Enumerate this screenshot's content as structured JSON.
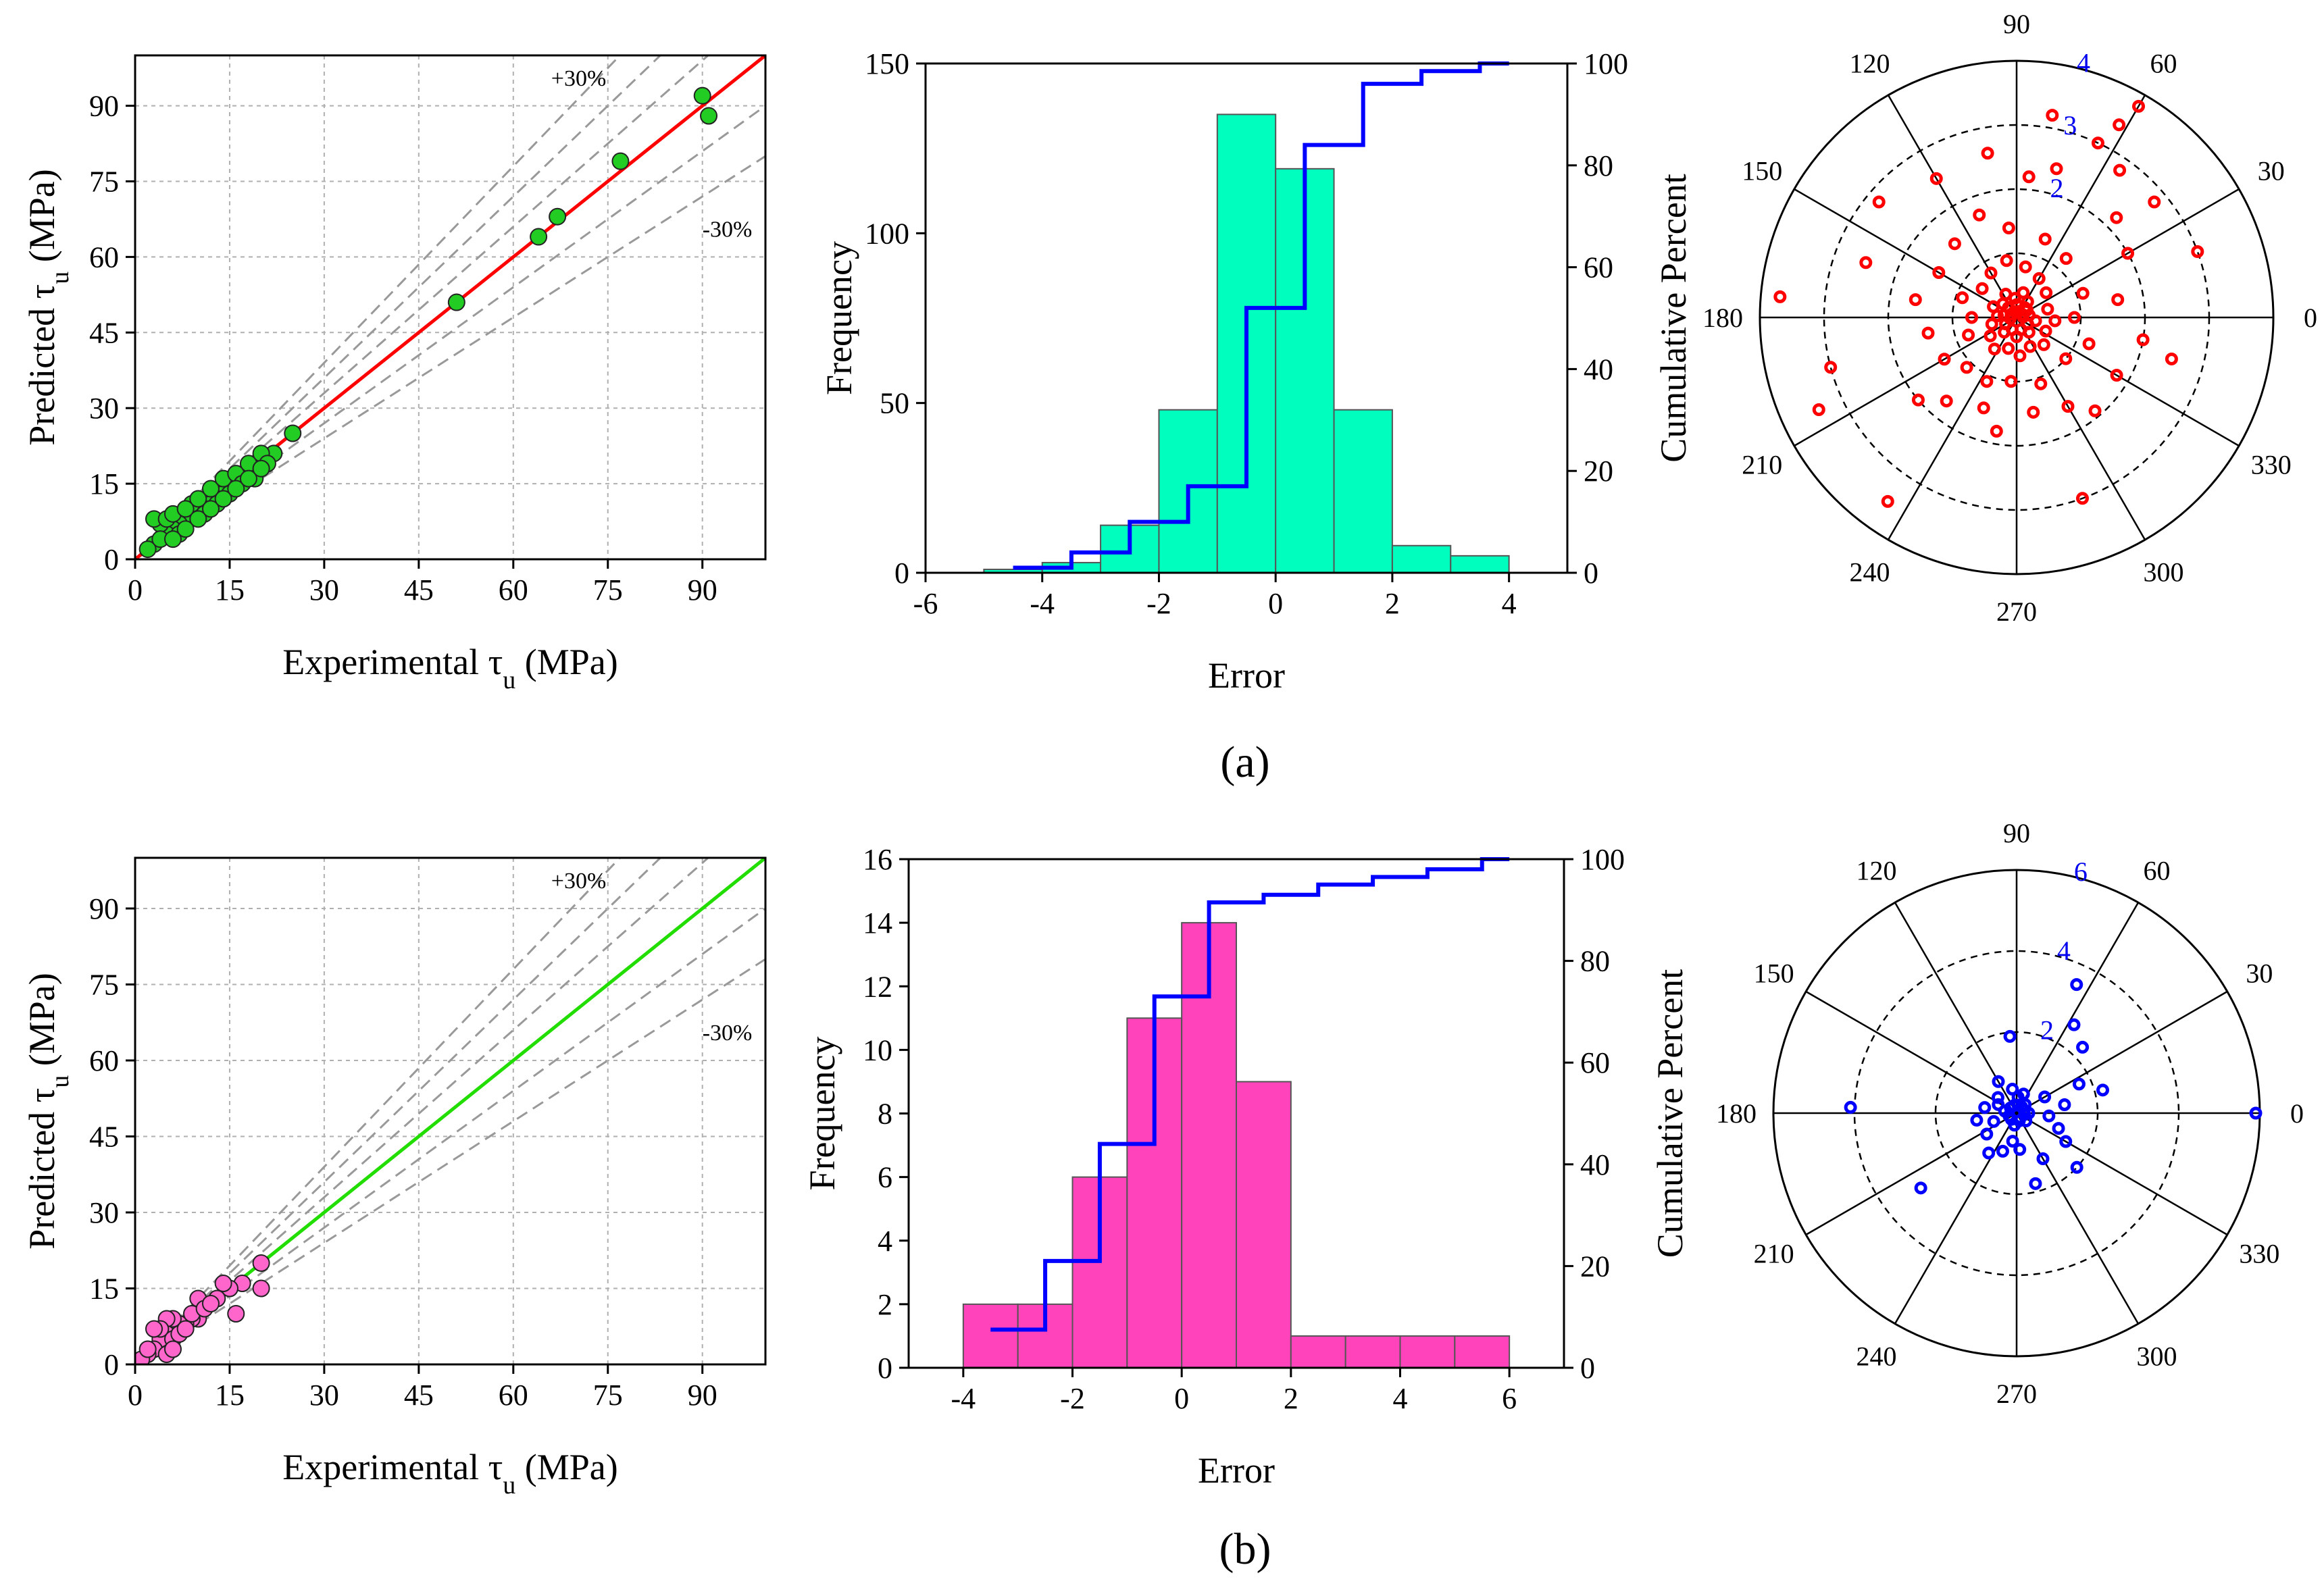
{
  "figure": {
    "panel_labels": [
      "(a)",
      "(b)"
    ]
  },
  "chart_data": [
    {
      "id": "a-scatter",
      "type": "scatter",
      "xlabel": "Experimental τu (MPa)",
      "ylabel": "Predicted τu (MPa)",
      "xlim": [
        0,
        100
      ],
      "ylim": [
        0,
        100
      ],
      "xticks": [
        0,
        15,
        30,
        45,
        60,
        75,
        90
      ],
      "yticks": [
        0,
        15,
        30,
        45,
        60,
        75,
        90
      ],
      "grid": true,
      "fit_line_color": "#ff0000",
      "point_color": "#22cc22",
      "annotations": [
        "+30%",
        "-30%"
      ],
      "reference_slopes": [
        1.3,
        1.2,
        1.1,
        0.9,
        0.8
      ],
      "points": [
        [
          90,
          92
        ],
        [
          91,
          88
        ],
        [
          77,
          79
        ],
        [
          67,
          68
        ],
        [
          64,
          64
        ],
        [
          51,
          51
        ],
        [
          25,
          25
        ],
        [
          22,
          21
        ],
        [
          20,
          20
        ],
        [
          19,
          18
        ],
        [
          18,
          17
        ],
        [
          17,
          16
        ],
        [
          16,
          15
        ],
        [
          15,
          14
        ],
        [
          14,
          13
        ],
        [
          13,
          12
        ],
        [
          12,
          11
        ],
        [
          11,
          10
        ],
        [
          10,
          9
        ],
        [
          9,
          9
        ],
        [
          8,
          8
        ],
        [
          7,
          7
        ],
        [
          6,
          6
        ],
        [
          5,
          5
        ],
        [
          4,
          7
        ],
        [
          3,
          8
        ],
        [
          5,
          8
        ],
        [
          6,
          9
        ],
        [
          7,
          5
        ],
        [
          8,
          6
        ],
        [
          9,
          11
        ],
        [
          10,
          12
        ],
        [
          11,
          9
        ],
        [
          12,
          14
        ],
        [
          13,
          11
        ],
        [
          14,
          16
        ],
        [
          15,
          13
        ],
        [
          16,
          17
        ],
        [
          17,
          15
        ],
        [
          18,
          19
        ],
        [
          19,
          16
        ],
        [
          20,
          21
        ],
        [
          21,
          19
        ],
        [
          3,
          3
        ],
        [
          2,
          2
        ],
        [
          4,
          4
        ],
        [
          6,
          4
        ],
        [
          8,
          10
        ],
        [
          10,
          8
        ],
        [
          12,
          10
        ],
        [
          14,
          12
        ],
        [
          16,
          14
        ],
        [
          18,
          16
        ],
        [
          20,
          18
        ]
      ]
    },
    {
      "id": "a-hist",
      "type": "bar",
      "xlabel": "Error",
      "ylabel": "Frequency",
      "y2label": "Cumulative Percent",
      "xlim": [
        -6,
        5
      ],
      "ylim": [
        0,
        150
      ],
      "y2lim": [
        0,
        100
      ],
      "xticks": [
        -6,
        -4,
        -2,
        0,
        2,
        4
      ],
      "yticks": [
        0,
        50,
        100,
        150
      ],
      "y2ticks": [
        0,
        20,
        40,
        60,
        80,
        100
      ],
      "bar_color": "#00ffbf",
      "cum_color": "#0000ff",
      "bin_width": 1,
      "bins": [
        [
          -5,
          -4,
          1
        ],
        [
          -4,
          -3,
          3
        ],
        [
          -3,
          -2,
          14
        ],
        [
          -2,
          -1,
          48
        ],
        [
          -1,
          0,
          135
        ],
        [
          0,
          1,
          119
        ],
        [
          1,
          2,
          48
        ],
        [
          2,
          3,
          8
        ],
        [
          3,
          4,
          5
        ]
      ],
      "cumulative": [
        [
          -4.5,
          1
        ],
        [
          -3.5,
          4
        ],
        [
          -2.5,
          10
        ],
        [
          -1.5,
          17
        ],
        [
          -0.5,
          52
        ],
        [
          0.5,
          84
        ],
        [
          1.5,
          96
        ],
        [
          2.5,
          98.5
        ],
        [
          3.5,
          100
        ],
        [
          4,
          100
        ]
      ]
    },
    {
      "id": "a-polar",
      "type": "scatter",
      "projection": "polar",
      "angle_ticks": [
        0,
        30,
        60,
        90,
        120,
        150,
        180,
        210,
        240,
        270,
        300,
        330
      ],
      "r_ticks": [
        1,
        2,
        3,
        4
      ],
      "rmax": 4,
      "r_tick_labels_shown": [
        2,
        3,
        4
      ],
      "point_color": "#ff0000",
      "points": [
        [
          60,
          3.8
        ],
        [
          62,
          3.4
        ],
        [
          80,
          3.2
        ],
        [
          65,
          3.0
        ],
        [
          55,
          2.8
        ],
        [
          40,
          2.8
        ],
        [
          20,
          3.0
        ],
        [
          175,
          3.7
        ],
        [
          195,
          3.0
        ],
        [
          205,
          3.4
        ],
        [
          235,
          3.5
        ],
        [
          290,
          3.0
        ],
        [
          160,
          2.5
        ],
        [
          140,
          2.8
        ],
        [
          120,
          2.5
        ],
        [
          100,
          2.6
        ],
        [
          85,
          2.2
        ],
        [
          75,
          2.4
        ],
        [
          45,
          2.2
        ],
        [
          30,
          2.0
        ],
        [
          10,
          1.6
        ],
        [
          -10,
          2.0
        ],
        [
          -15,
          2.5
        ],
        [
          330,
          1.8
        ],
        [
          310,
          1.9
        ],
        [
          300,
          1.6
        ],
        [
          280,
          1.5
        ],
        [
          260,
          1.8
        ],
        [
          250,
          1.5
        ],
        [
          230,
          1.7
        ],
        [
          220,
          2.0
        ],
        [
          210,
          1.3
        ],
        [
          190,
          1.4
        ],
        [
          170,
          1.6
        ],
        [
          150,
          1.4
        ],
        [
          130,
          1.5
        ],
        [
          110,
          1.7
        ],
        [
          95,
          1.4
        ],
        [
          70,
          1.3
        ],
        [
          50,
          1.2
        ],
        [
          20,
          1.1
        ],
        [
          0,
          0.9
        ],
        [
          340,
          1.2
        ],
        [
          320,
          1.0
        ],
        [
          290,
          1.1
        ],
        [
          265,
          1.0
        ],
        [
          245,
          1.1
        ],
        [
          225,
          1.1
        ],
        [
          200,
          0.8
        ],
        [
          180,
          0.7
        ],
        [
          160,
          0.9
        ],
        [
          140,
          0.7
        ],
        [
          120,
          0.8
        ],
        [
          100,
          0.9
        ],
        [
          80,
          0.8
        ],
        [
          60,
          0.7
        ],
        [
          40,
          0.6
        ],
        [
          15,
          0.5
        ],
        [
          355,
          0.6
        ],
        [
          335,
          0.5
        ],
        [
          315,
          0.6
        ],
        [
          295,
          0.5
        ],
        [
          275,
          0.6
        ],
        [
          255,
          0.5
        ],
        [
          235,
          0.6
        ],
        [
          215,
          0.5
        ],
        [
          195,
          0.4
        ],
        [
          175,
          0.3
        ],
        [
          155,
          0.4
        ],
        [
          135,
          0.3
        ],
        [
          115,
          0.4
        ],
        [
          95,
          0.3
        ],
        [
          75,
          0.4
        ],
        [
          55,
          0.3
        ],
        [
          35,
          0.2
        ],
        [
          10,
          0.2
        ],
        [
          350,
          0.3
        ],
        [
          330,
          0.2
        ],
        [
          310,
          0.3
        ],
        [
          290,
          0.2
        ],
        [
          270,
          0.3
        ],
        [
          250,
          0.2
        ],
        [
          230,
          0.3
        ],
        [
          210,
          0.2
        ],
        [
          190,
          0.1
        ],
        [
          170,
          0.2
        ],
        [
          150,
          0.1
        ],
        [
          130,
          0.2
        ],
        [
          110,
          0.1
        ],
        [
          90,
          0.2
        ],
        [
          70,
          0.1
        ],
        [
          50,
          0.2
        ],
        [
          30,
          0.1
        ],
        [
          5,
          0.1
        ]
      ]
    },
    {
      "id": "b-scatter",
      "type": "scatter",
      "xlabel": "Experimental τu (MPa)",
      "ylabel": "Predicted τu (MPa)",
      "xlim": [
        0,
        100
      ],
      "ylim": [
        0,
        100
      ],
      "xticks": [
        0,
        15,
        30,
        45,
        60,
        75,
        90
      ],
      "yticks": [
        0,
        15,
        30,
        45,
        60,
        75,
        90
      ],
      "grid": true,
      "fit_line_color": "#22dd00",
      "point_color": "#ff66cc",
      "annotations": [
        "+30%",
        "-30%"
      ],
      "reference_slopes": [
        1.3,
        1.2,
        1.1,
        0.9,
        0.8
      ],
      "points": [
        [
          20,
          20
        ],
        [
          20,
          15
        ],
        [
          17,
          16
        ],
        [
          16,
          10
        ],
        [
          15,
          15
        ],
        [
          14,
          16
        ],
        [
          13,
          13
        ],
        [
          10,
          13
        ],
        [
          10,
          9
        ],
        [
          9,
          9
        ],
        [
          8,
          8
        ],
        [
          7,
          8
        ],
        [
          6,
          9
        ],
        [
          5,
          9
        ],
        [
          5,
          6
        ],
        [
          4,
          5
        ],
        [
          4,
          7
        ],
        [
          3,
          7
        ],
        [
          3,
          3
        ],
        [
          2,
          2
        ],
        [
          6,
          5
        ],
        [
          7,
          6
        ],
        [
          8,
          7
        ],
        [
          9,
          10
        ],
        [
          11,
          11
        ],
        [
          12,
          12
        ],
        [
          1,
          1
        ],
        [
          2,
          3
        ],
        [
          5,
          2
        ],
        [
          6,
          3
        ]
      ]
    },
    {
      "id": "b-hist",
      "type": "bar",
      "xlabel": "Error",
      "ylabel": "Frequency",
      "y2label": "Cumulative Percent",
      "xlim": [
        -5,
        7
      ],
      "ylim": [
        0,
        16
      ],
      "y2lim": [
        0,
        100
      ],
      "xticks": [
        -4,
        -2,
        0,
        2,
        4,
        6
      ],
      "yticks": [
        0,
        2,
        4,
        6,
        8,
        10,
        12,
        14,
        16
      ],
      "y2ticks": [
        0,
        20,
        40,
        60,
        80,
        100
      ],
      "bar_color": "#ff44bb",
      "cum_color": "#0000ff",
      "bin_width": 1,
      "bins": [
        [
          -4,
          -3,
          2
        ],
        [
          -3,
          -2,
          2
        ],
        [
          -2,
          -1,
          6
        ],
        [
          -1,
          0,
          11
        ],
        [
          0,
          1,
          14
        ],
        [
          1,
          2,
          9
        ],
        [
          2,
          3,
          1
        ],
        [
          3,
          4,
          1
        ],
        [
          4,
          5,
          1
        ],
        [
          5,
          6,
          1
        ]
      ],
      "cumulative": [
        [
          -3.5,
          7.5
        ],
        [
          -2.5,
          21
        ],
        [
          -1.5,
          44
        ],
        [
          -0.5,
          73
        ],
        [
          0.5,
          91.5
        ],
        [
          1.5,
          93
        ],
        [
          2.5,
          95
        ],
        [
          3.5,
          96.5
        ],
        [
          4.5,
          98
        ],
        [
          5.5,
          100
        ],
        [
          6,
          100
        ]
      ]
    },
    {
      "id": "b-polar",
      "type": "scatter",
      "projection": "polar",
      "angle_ticks": [
        0,
        30,
        60,
        90,
        120,
        150,
        180,
        210,
        240,
        270,
        300,
        330
      ],
      "r_ticks": [
        2,
        4,
        6
      ],
      "rmax": 6,
      "r_tick_labels_shown": [
        2,
        4,
        6
      ],
      "point_color": "#0000ff",
      "points": [
        [
          0,
          5.9
        ],
        [
          178,
          4.1
        ],
        [
          218,
          3.0
        ],
        [
          57,
          2.6
        ],
        [
          65,
          3.5
        ],
        [
          45,
          2.3
        ],
        [
          25,
          1.7
        ],
        [
          15,
          2.2
        ],
        [
          355,
          0.8
        ],
        [
          340,
          1.1
        ],
        [
          330,
          1.4
        ],
        [
          318,
          2.0
        ],
        [
          300,
          1.3
        ],
        [
          285,
          1.8
        ],
        [
          275,
          0.9
        ],
        [
          262,
          0.7
        ],
        [
          250,
          1.0
        ],
        [
          235,
          1.2
        ],
        [
          215,
          0.9
        ],
        [
          200,
          0.6
        ],
        [
          190,
          1.0
        ],
        [
          170,
          0.8
        ],
        [
          155,
          0.5
        ],
        [
          140,
          0.6
        ],
        [
          120,
          0.9
        ],
        [
          100,
          0.6
        ],
        [
          95,
          1.9
        ],
        [
          85,
          0.4
        ],
        [
          70,
          0.5
        ],
        [
          45,
          0.3
        ],
        [
          30,
          0.8
        ],
        [
          10,
          1.2
        ],
        [
          0,
          0.3
        ],
        [
          350,
          0.2
        ],
        [
          320,
          0.3
        ],
        [
          290,
          0.2
        ],
        [
          260,
          0.3
        ],
        [
          230,
          0.2
        ],
        [
          200,
          0.2
        ],
        [
          170,
          0.3
        ],
        [
          140,
          0.2
        ],
        [
          110,
          0.2
        ],
        [
          80,
          0.2
        ],
        [
          50,
          0.2
        ],
        [
          20,
          0.2
        ]
      ]
    }
  ]
}
